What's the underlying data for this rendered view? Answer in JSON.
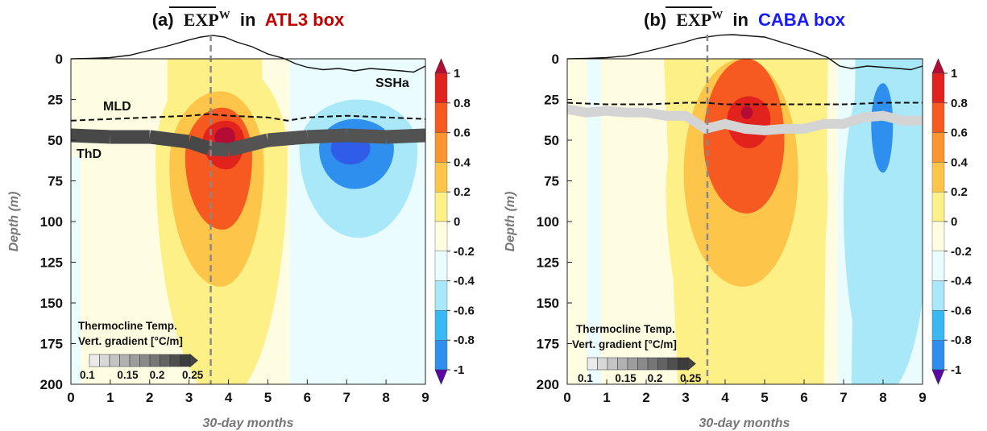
{
  "colors": {
    "levels": [
      "#5b08a6",
      "#8a2be2",
      "#2f5ce8",
      "#2f8fef",
      "#39b9f2",
      "#a8e8f8",
      "#eafcfe",
      "#fefde2",
      "#fdf086",
      "#fdc64a",
      "#fb9530",
      "#f65a20",
      "#e1221d",
      "#b50c36"
    ],
    "title_red": "#c00000",
    "title_blue": "#1919ff",
    "thd_dark": "#3c3c3c",
    "thd_light": "#d7d7d7"
  },
  "chart_data": [
    {
      "type": "heatmap",
      "title_prefix": "(a)",
      "title_var": "EXP",
      "title_sup": "W",
      "title_mid": "in",
      "title_box": "ATL3 box",
      "xlabel": "30-day months",
      "ylabel": "Depth (m)",
      "xlim": [
        0,
        9
      ],
      "ylim": [
        200,
        0
      ],
      "xticks": [
        "0",
        "1",
        "2",
        "3",
        "4",
        "5",
        "6",
        "7",
        "8",
        "9"
      ],
      "yticks": [
        "0",
        "25",
        "50",
        "75",
        "100",
        "125",
        "150",
        "175",
        "200"
      ],
      "vline_x": 3.55,
      "annotations": {
        "mld": "MLD",
        "thd": "ThD",
        "ssh": "SSHa"
      },
      "ssha_x": [
        0,
        0.5,
        1,
        1.5,
        2,
        2.5,
        3,
        3.3,
        3.6,
        3.9,
        4.2,
        4.6,
        5,
        5.4,
        5.7,
        6,
        6.4,
        6.8,
        7.2,
        7.6,
        8,
        8.4,
        8.7,
        9
      ],
      "ssha_y": [
        0,
        0.02,
        0.05,
        0.15,
        0.35,
        0.55,
        0.78,
        0.9,
        0.97,
        0.9,
        0.7,
        0.5,
        0.2,
        0.02,
        -0.2,
        -0.35,
        -0.45,
        -0.4,
        -0.5,
        -0.4,
        -0.45,
        -0.5,
        -0.55,
        -0.3
      ],
      "mld_x": [
        0,
        1,
        2,
        3,
        3.5,
        4,
        5,
        5.5,
        6,
        7,
        8,
        9
      ],
      "mld_y": [
        38,
        37,
        36,
        35,
        34,
        35,
        36,
        38,
        36,
        35,
        36,
        37
      ],
      "thd_x": [
        0,
        1,
        2,
        3,
        3.5,
        4,
        4.5,
        5,
        6,
        7,
        8,
        9
      ],
      "thd_y": [
        47,
        48,
        48,
        51,
        55,
        56,
        53,
        50,
        48,
        47,
        48,
        47
      ],
      "thd_grad": [
        0.24,
        0.24,
        0.24,
        0.24,
        0.23,
        0.23,
        0.23,
        0.23,
        0.23,
        0.23,
        0.23,
        0.23
      ],
      "blobs": [
        {
          "v": 0.1,
          "cx": 3.85,
          "cy": 60,
          "rxl": 1.7,
          "rxr": 1.65,
          "ryt": 60,
          "ryb": 150
        },
        {
          "v": 0.3,
          "cx": 3.8,
          "cy": 65,
          "rxl": 1.3,
          "rxr": 1.1,
          "ryt": 45,
          "ryb": 75
        },
        {
          "v": 0.5,
          "cx": 3.85,
          "cy": 60,
          "rxl": 0.95,
          "rxr": 0.75,
          "ryt": 30,
          "ryb": 45
        },
        {
          "v": 0.7,
          "cx": 3.95,
          "cy": 50,
          "rxl": 0.6,
          "rxr": 0.45,
          "ryt": 12,
          "ryb": 18
        },
        {
          "v": 0.9,
          "cx": 3.95,
          "cy": 48,
          "rxl": 0.3,
          "rxr": 0.22,
          "ryt": 6,
          "ryb": 8
        },
        {
          "v": -0.1,
          "cx": 7.3,
          "cy": 55,
          "rxl": 1.5,
          "rxr": 1.5,
          "ryt": 30,
          "ryb": 55
        },
        {
          "v": -0.3,
          "cx": 7.2,
          "cy": 55,
          "rxl": 0.9,
          "rxr": 1,
          "ryt": 18,
          "ryb": 25
        },
        {
          "v": -0.5,
          "cx": 7.1,
          "cy": 55,
          "rxl": 0.5,
          "rxr": 0.5,
          "ryt": 9,
          "ryb": 10
        }
      ]
    },
    {
      "type": "heatmap",
      "title_prefix": "(b)",
      "title_var": "EXP",
      "title_sup": "W",
      "title_mid": "in",
      "title_box": "CABA box",
      "xlabel": "30-day months",
      "ylabel": "Depth (m)",
      "xlim": [
        0,
        9
      ],
      "ylim": [
        200,
        0
      ],
      "xticks": [
        "0",
        "1",
        "2",
        "3",
        "4",
        "5",
        "6",
        "7",
        "8",
        "9"
      ],
      "yticks": [
        "0",
        "25",
        "50",
        "75",
        "100",
        "125",
        "150",
        "175",
        "200"
      ],
      "vline_x": 3.55,
      "annotations": {
        "mld": "",
        "thd": "",
        "ssh": ""
      },
      "ssha_x": [
        0,
        0.5,
        1,
        1.5,
        2,
        2.5,
        3,
        3.3,
        3.6,
        3.9,
        4.2,
        4.6,
        5,
        5.4,
        5.8,
        6.2,
        6.6,
        6.9,
        7.2,
        7.6,
        8,
        8.4,
        8.7,
        9
      ],
      "ssha_y": [
        0,
        0.02,
        0.05,
        0.12,
        0.3,
        0.5,
        0.7,
        0.85,
        0.92,
        0.98,
        1,
        0.95,
        0.9,
        0.7,
        0.5,
        0.3,
        0.05,
        -0.3,
        -0.4,
        -0.3,
        -0.35,
        -0.4,
        -0.45,
        -0.3
      ],
      "mld_x": [
        0,
        1,
        2,
        3,
        3.5,
        4,
        5,
        6,
        7,
        8,
        9
      ],
      "mld_y": [
        27,
        28,
        28,
        27,
        27,
        28,
        28,
        28,
        28,
        27,
        27
      ],
      "thd_x": [
        0,
        0.5,
        1,
        1.5,
        2,
        2.5,
        3,
        3.5,
        4,
        4.5,
        5,
        5.5,
        6,
        6.5,
        7,
        7.5,
        8,
        8.5,
        9
      ],
      "thd_y": [
        31,
        33,
        32,
        33,
        33,
        35,
        35,
        43,
        40,
        43,
        44,
        43,
        43,
        40,
        40,
        36,
        35,
        38,
        38
      ],
      "thd_grad": [
        0.12,
        0.12,
        0.12,
        0.12,
        0.12,
        0.12,
        0.12,
        0.12,
        0.12,
        0.12,
        0.12,
        0.12,
        0.12,
        0.12,
        0.12,
        0.12,
        0.12,
        0.12,
        0.12
      ],
      "blobs": [
        {
          "v": 0.1,
          "cx": 4.5,
          "cy": 80,
          "rxl": 2.0,
          "rxr": 2.1,
          "ryt": 80,
          "ryb": 130
        },
        {
          "v": 0.3,
          "cx": 4.45,
          "cy": 70,
          "rxl": 1.5,
          "rxr": 1.4,
          "ryt": 70,
          "ryb": 70
        },
        {
          "v": 0.5,
          "cx": 4.55,
          "cy": 50,
          "rxl": 1.1,
          "rxr": 0.95,
          "ryt": 50,
          "ryb": 45
        },
        {
          "v": 0.7,
          "cx": 4.6,
          "cy": 37,
          "rxl": 0.55,
          "rxr": 0.55,
          "ryt": 14,
          "ryb": 18
        },
        {
          "v": 0.9,
          "cx": 4.55,
          "cy": 33,
          "rxl": 0.15,
          "rxr": 0.15,
          "ryt": 4,
          "ryb": 4
        },
        {
          "v": -0.1,
          "cx": 8.05,
          "cy": 90,
          "rxl": 1.05,
          "rxr": 1.1,
          "ryt": 95,
          "ryb": 115
        },
        {
          "v": -0.3,
          "cx": 8.0,
          "cy": 40,
          "rxl": 0.3,
          "rxr": 0.25,
          "ryt": 25,
          "ryb": 30
        }
      ]
    }
  ],
  "colorbar": {
    "ticks": [
      "1",
      "0.8",
      "0.6",
      "0.4",
      "0.2",
      "0",
      "-0.2",
      "-0.4",
      "-0.6",
      "-0.8",
      "-1"
    ]
  },
  "thermo_legend": {
    "title1": "Thermocline Temp.",
    "title2": "Vert. gradient [°C/m]",
    "ticks": [
      "0.1",
      "0.15",
      "0.2",
      "0.25"
    ]
  }
}
